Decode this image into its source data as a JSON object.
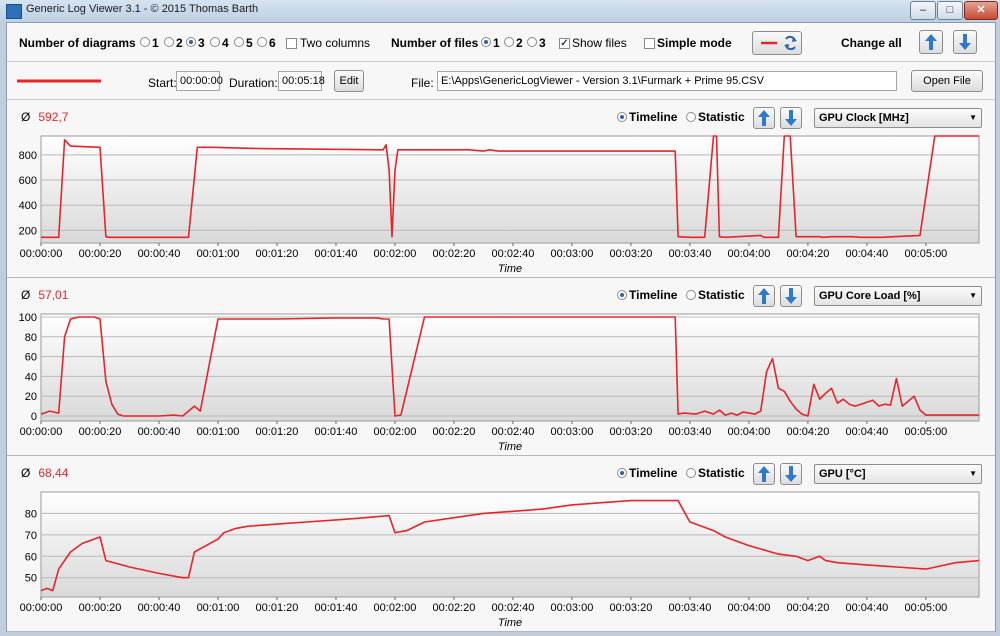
{
  "window": {
    "title": "Generic Log Viewer 3.1 - © 2015 Thomas Barth"
  },
  "toolbar": {
    "num_diagrams_label": "Number of diagrams",
    "diagram_options": [
      "1",
      "2",
      "3",
      "4",
      "5",
      "6"
    ],
    "diagram_selected": "3",
    "two_columns_label": "Two columns",
    "num_files_label": "Number of files",
    "file_options": [
      "1",
      "2",
      "3"
    ],
    "file_selected": "1",
    "show_files_label": "Show files",
    "show_files_checked": true,
    "simple_mode_label": "Simple mode",
    "change_all_label": "Change all"
  },
  "file_row": {
    "series_color": "#e8242a",
    "start_label": "Start:",
    "start_value": "00:00:00",
    "duration_label": "Duration:",
    "duration_value": "00:05:18",
    "edit_label": "Edit",
    "file_label": "File:",
    "file_path": "E:\\Apps\\GenericLogViewer - Version 3.1\\Furmark + Prime 95.CSV",
    "open_label": "Open File"
  },
  "panel_common": {
    "timeline_label": "Timeline",
    "statistic_label": "Statistic",
    "avg_symbol": "Ø"
  },
  "chart_data": [
    {
      "type": "line",
      "selector": "GPU Clock [MHz]",
      "average": "592,7",
      "xlabel": "Time",
      "ylabel": "",
      "xlim": [
        0,
        318
      ],
      "ylim": [
        100,
        950
      ],
      "x_ticks": [
        "00:00:00",
        "00:00:20",
        "00:00:40",
        "00:01:00",
        "00:01:20",
        "00:01:40",
        "00:02:00",
        "00:02:20",
        "00:02:40",
        "00:03:00",
        "00:03:20",
        "00:03:40",
        "00:04:00",
        "00:04:20",
        "00:04:40",
        "00:05:00"
      ],
      "y_ticks": [
        200,
        400,
        600,
        800
      ],
      "series": [
        {
          "color": "#e8242a",
          "x": [
            0,
            6,
            8,
            10,
            20,
            22,
            23,
            50,
            53,
            58,
            75,
            115,
            116,
            117,
            118,
            119,
            120,
            121,
            122,
            145,
            150,
            152,
            155,
            160,
            170,
            180,
            185,
            215,
            216,
            220,
            225,
            228,
            229,
            230,
            232,
            236,
            244,
            245,
            247,
            250,
            252,
            254,
            256,
            264,
            265,
            268,
            275,
            278,
            285,
            298,
            303,
            318
          ],
          "values": [
            145,
            145,
            920,
            870,
            860,
            150,
            145,
            145,
            860,
            860,
            850,
            840,
            840,
            880,
            680,
            150,
            680,
            840,
            840,
            840,
            830,
            840,
            830,
            830,
            830,
            830,
            830,
            830,
            150,
            145,
            145,
            950,
            950,
            150,
            145,
            150,
            160,
            145,
            145,
            145,
            950,
            950,
            150,
            150,
            145,
            150,
            150,
            145,
            145,
            160,
            950,
            950
          ]
        }
      ]
    },
    {
      "type": "line",
      "selector": "GPU Core Load [%]",
      "average": "57,01",
      "xlabel": "Time",
      "ylabel": "",
      "xlim": [
        0,
        318
      ],
      "ylim": [
        -5,
        103
      ],
      "x_ticks": [
        "00:00:00",
        "00:00:20",
        "00:00:40",
        "00:01:00",
        "00:01:20",
        "00:01:40",
        "00:02:00",
        "00:02:20",
        "00:02:40",
        "00:03:00",
        "00:03:20",
        "00:03:40",
        "00:04:00",
        "00:04:20",
        "00:04:40",
        "00:05:00"
      ],
      "y_ticks": [
        0,
        20,
        40,
        60,
        80,
        100
      ],
      "series": [
        {
          "color": "#e8242a",
          "x": [
            0,
            3,
            6,
            8,
            10,
            13,
            18,
            20,
            22,
            24,
            26,
            28,
            40,
            45,
            48,
            50,
            52,
            54,
            60,
            80,
            100,
            114,
            116,
            118,
            120,
            122,
            130,
            160,
            200,
            215,
            216,
            218,
            222,
            225,
            228,
            230,
            232,
            234,
            236,
            238,
            240,
            242,
            244,
            246,
            248,
            250,
            252,
            254,
            256,
            258,
            260,
            262,
            264,
            266,
            268,
            270,
            272,
            274,
            276,
            278,
            280,
            282,
            284,
            286,
            288,
            290,
            292,
            294,
            296,
            298,
            300,
            302,
            304,
            318
          ],
          "values": [
            2,
            5,
            3,
            80,
            98,
            100,
            100,
            98,
            35,
            12,
            2,
            0,
            0,
            1,
            0,
            5,
            10,
            5,
            98,
            98,
            99,
            99,
            98,
            98,
            0,
            1,
            100,
            100,
            100,
            100,
            2,
            3,
            2,
            5,
            2,
            6,
            1,
            3,
            1,
            4,
            3,
            2,
            5,
            45,
            58,
            28,
            25,
            15,
            7,
            2,
            0,
            32,
            17,
            23,
            28,
            13,
            17,
            12,
            10,
            12,
            14,
            16,
            10,
            12,
            11,
            38,
            10,
            15,
            20,
            6,
            1,
            1,
            1,
            1
          ]
        }
      ]
    },
    {
      "type": "line",
      "selector": "GPU [°C]",
      "average": "68,44",
      "xlabel": "Time",
      "ylabel": "",
      "xlim": [
        0,
        318
      ],
      "ylim": [
        41,
        90
      ],
      "x_ticks": [
        "00:00:00",
        "00:00:20",
        "00:00:40",
        "00:01:00",
        "00:01:20",
        "00:01:40",
        "00:02:00",
        "00:02:20",
        "00:02:40",
        "00:03:00",
        "00:03:20",
        "00:03:40",
        "00:04:00",
        "00:04:20",
        "00:04:40",
        "00:05:00"
      ],
      "y_ticks": [
        50,
        60,
        70,
        80
      ],
      "series": [
        {
          "color": "#e8242a",
          "x": [
            0,
            2,
            4,
            6,
            10,
            14,
            20,
            22,
            30,
            40,
            48,
            50,
            52,
            60,
            62,
            66,
            70,
            80,
            90,
            100,
            110,
            118,
            120,
            124,
            130,
            140,
            150,
            160,
            170,
            180,
            190,
            200,
            210,
            212,
            216,
            220,
            224,
            228,
            232,
            240,
            250,
            256,
            260,
            264,
            266,
            270,
            280,
            290,
            300,
            310,
            318
          ],
          "values": [
            44,
            45,
            44,
            54,
            62,
            66,
            69,
            58,
            55,
            52,
            50,
            50,
            62,
            68,
            71,
            73,
            74,
            75,
            76,
            77,
            78,
            79,
            71,
            72,
            76,
            78,
            80,
            81,
            82,
            84,
            85,
            86,
            86,
            86,
            86,
            76,
            74,
            72,
            69,
            65,
            61,
            60,
            58,
            60,
            58,
            57,
            56,
            55,
            54,
            57,
            58
          ]
        }
      ]
    }
  ]
}
